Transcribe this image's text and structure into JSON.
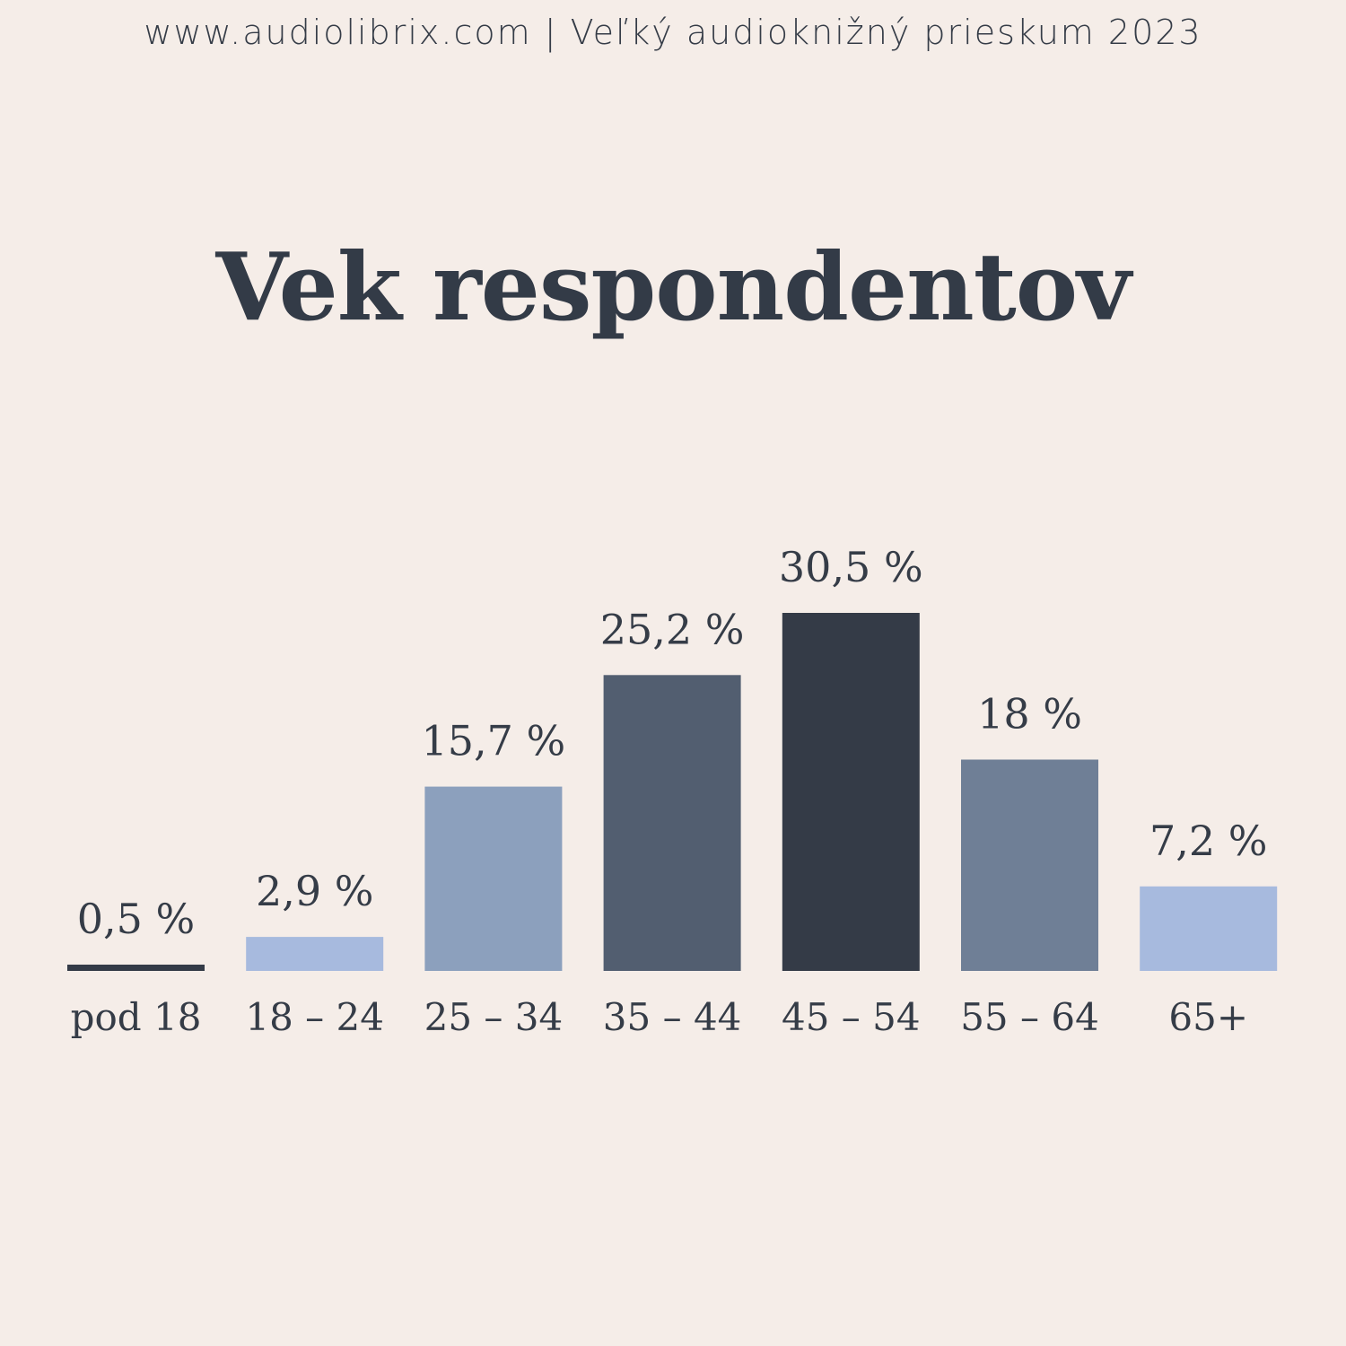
{
  "header": {
    "text": "www.audiolibrix.com | Veľký audioknižný prieskum 2023"
  },
  "chart_data": {
    "type": "bar",
    "title": "Vek respondentov",
    "categories": [
      "pod 18",
      "18 – 24",
      "25 – 34",
      "35 – 44",
      "45 – 54",
      "55 – 64",
      "65+"
    ],
    "values": [
      0.5,
      2.9,
      15.7,
      25.2,
      30.5,
      18,
      7.2
    ],
    "value_labels": [
      "0,5 %",
      "2,9 %",
      "15,7 %",
      "25,2 %",
      "30,5 %",
      "18 %",
      "7,2 %"
    ],
    "colors": [
      "#343b47",
      "#a7bade",
      "#8ca0bd",
      "#525e70",
      "#343b47",
      "#6f7f96",
      "#a7bade"
    ],
    "xlabel": "",
    "ylabel": "",
    "ylim": [
      0,
      30.5
    ],
    "grid": false
  }
}
